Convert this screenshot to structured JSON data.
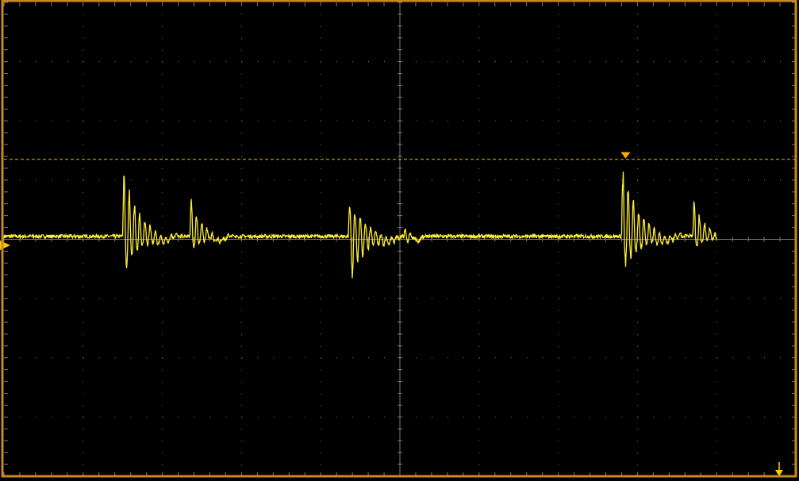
{
  "display": {
    "colors": {
      "background": "#000000",
      "frame": "#c88a1e",
      "grid": "#7a7a7a",
      "trace": "#ffee33",
      "trigger": "#ffb000",
      "marker": "#ffcc00"
    },
    "grid": {
      "divisions_x": 10,
      "divisions_y": 8,
      "subdivisions": 5
    }
  },
  "channel": {
    "color_name": "yellow",
    "ground_level_div": -0.1,
    "baseline_div": 0.05
  },
  "trigger": {
    "level_div": 1.35,
    "position_div": 2.85
  },
  "bursts": [
    {
      "start_div": -3.5,
      "peak_div": 1.3,
      "trough_div": -0.7,
      "decay": 0.55
    },
    {
      "start_div": -2.65,
      "peak_div": 0.75,
      "trough_div": -0.3,
      "decay": 0.4
    },
    {
      "start_div": -0.65,
      "peak_div": 0.75,
      "trough_div": -0.95,
      "decay": 0.55
    },
    {
      "start_div": 0.05,
      "peak_div": 0.2,
      "trough_div": -0.25,
      "decay": 0.2
    },
    {
      "start_div": 2.8,
      "peak_div": 1.35,
      "trough_div": -0.7,
      "decay": 0.6
    },
    {
      "start_div": 3.7,
      "peak_div": 0.75,
      "trough_div": -0.3,
      "decay": 0.4
    }
  ],
  "trace_end_div": 4.0
}
